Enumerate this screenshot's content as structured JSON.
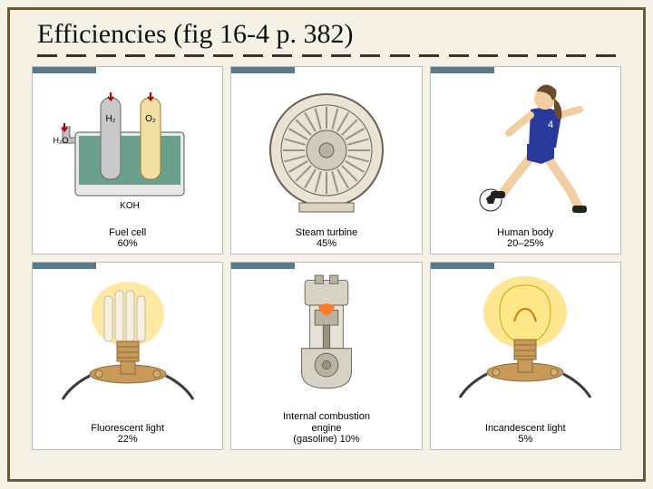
{
  "title": "Efficiencies (fig 16-4 p. 382)",
  "background_color": "#f5f1e4",
  "frame_border_color": "#6b5a3a",
  "divider_color": "#3a3428",
  "divider_segments": 20,
  "grid": {
    "rows": 2,
    "cols": 3
  },
  "items": [
    {
      "id": "fuel-cell",
      "name": "Fuel cell",
      "efficiency": "60%",
      "caption_line1": "Fuel cell",
      "caption_line2": "60%",
      "diagram": {
        "type": "fuel-cell-schematic",
        "vessel_fill": "#6aa08c",
        "vessel_outline": "#555",
        "tube_h2_fill": "#c9c9cc",
        "tube_o2_fill": "#f2dfa3",
        "arrow_color": "#b00000",
        "labels": {
          "H2": "H₂",
          "O2": "O₂",
          "H2O": "H₂O",
          "KOH": "KOH"
        },
        "label_fontsize": 9
      }
    },
    {
      "id": "steam-turbine",
      "name": "Steam turbine",
      "efficiency": "45%",
      "caption_line1": "Steam turbine",
      "caption_line2": "45%",
      "diagram": {
        "type": "turbine-cross-section",
        "casing_fill": "#dcd3c0",
        "ring_outer_fill": "#e8e3d5",
        "ring_stroke": "#6b6050",
        "hub_fill": "#d0cbbc",
        "blade_count": 24,
        "inner_detail_color": "#9a927e"
      }
    },
    {
      "id": "human-body",
      "name": "Human body",
      "efficiency": "20–25%",
      "caption_line1": "Human body",
      "caption_line2": "20–25%",
      "diagram": {
        "type": "soccer-player",
        "hair_color": "#6b4a2a",
        "skin_color": "#f2cfa3",
        "jersey_color": "#2a3a9a",
        "jersey_number": "4",
        "shorts_color": "#2a3a9a",
        "socks_color": "#ffffff",
        "shoe_color": "#222222",
        "ball_color": "#ffffff",
        "ball_panel_color": "#222222"
      }
    },
    {
      "id": "fluorescent-light",
      "name": "Fluorescent light",
      "efficiency": "22%",
      "caption_line1": "Fluorescent light",
      "caption_line2": "22%",
      "diagram": {
        "type": "cfl-bulb",
        "glow_color": "#ffd866",
        "tube_color": "#f5f0e0",
        "base_color": "#c79a5a",
        "fixture_color": "#c79a5a",
        "wire_color": "#3a3a3a"
      }
    },
    {
      "id": "internal-combustion",
      "name": "Internal combustion engine (gasoline)",
      "efficiency": "10%",
      "caption_line1": "Internal combustion",
      "caption_line2": "engine",
      "caption_line3": "(gasoline) 10%",
      "diagram": {
        "type": "engine-cutaway",
        "block_fill": "#d6d2c6",
        "block_stroke": "#6b6050",
        "piston_fill": "#b8b2a2",
        "crank_color": "#9a927e",
        "fire_color": "#ff7a2a"
      }
    },
    {
      "id": "incandescent-light",
      "name": "Incandescent light",
      "efficiency": "5%",
      "caption_line1": "Incandescent light",
      "caption_line2": "5%",
      "diagram": {
        "type": "incandescent-bulb",
        "glow_color": "#ffd23a",
        "bulb_glass": "#ffe88a",
        "filament_color": "#cc7a00",
        "base_color": "#c79a5a",
        "fixture_color": "#c79a5a",
        "wire_color": "#3a3a3a"
      }
    }
  ],
  "caption_font": {
    "family": "Arial",
    "size": 11,
    "color": "#000000"
  },
  "title_font": {
    "family": "Times New Roman",
    "size": 30,
    "color": "#111111"
  }
}
